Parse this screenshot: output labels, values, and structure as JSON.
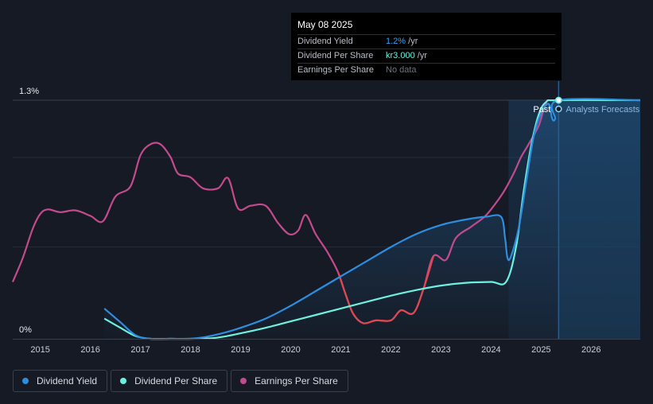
{
  "tooltip": {
    "date": "May 08 2025",
    "rows": [
      {
        "name": "Dividend Yield",
        "value": "1.2%",
        "suffix": " /yr",
        "color": "#3aa0ee"
      },
      {
        "name": "Dividend Per Share",
        "value": "kr3.000",
        "suffix": " /yr",
        "color": "#6ef0df"
      },
      {
        "name": "Earnings Per Share",
        "value": "No data",
        "suffix": "",
        "color": "#6d737c"
      }
    ]
  },
  "legend": [
    {
      "label": "Dividend Yield",
      "color": "#2d8ee0"
    },
    {
      "label": "Dividend Per Share",
      "color": "#6ef0df"
    },
    {
      "label": "Earnings Per Share",
      "color": "#c44a8e"
    }
  ],
  "chart_data": {
    "type": "line",
    "y_tick_labels": [
      "1.3%",
      "0%"
    ],
    "x_tick_labels": [
      "2015",
      "2016",
      "2017",
      "2018",
      "2019",
      "2020",
      "2021",
      "2022",
      "2023",
      "2024",
      "2025",
      "2026"
    ],
    "xlim": [
      2014.45,
      2026.98
    ],
    "ylim": [
      0,
      1.3
    ],
    "past_label": "Past",
    "forecast_label": "Analysts Forecasts",
    "forecast_start": 2024.35,
    "cursor_x": 2025.35,
    "series": [
      {
        "name": "Dividend Yield",
        "color": "#2d8ee0",
        "points": [
          [
            2016.28,
            0.165
          ],
          [
            2016.6,
            0.09
          ],
          [
            2016.9,
            0.02
          ],
          [
            2017.2,
            0.0
          ],
          [
            2017.6,
            0.0
          ],
          [
            2018.0,
            0.0
          ],
          [
            2018.3,
            0.01
          ],
          [
            2018.7,
            0.035
          ],
          [
            2019.0,
            0.06
          ],
          [
            2019.5,
            0.11
          ],
          [
            2020.0,
            0.18
          ],
          [
            2020.5,
            0.26
          ],
          [
            2021.0,
            0.34
          ],
          [
            2021.5,
            0.42
          ],
          [
            2022.0,
            0.5
          ],
          [
            2022.5,
            0.57
          ],
          [
            2023.0,
            0.62
          ],
          [
            2023.5,
            0.65
          ],
          [
            2023.9,
            0.665
          ],
          [
            2024.2,
            0.665
          ],
          [
            2024.28,
            0.55
          ],
          [
            2024.33,
            0.44
          ],
          [
            2024.4,
            0.45
          ],
          [
            2024.55,
            0.6
          ],
          [
            2024.7,
            0.85
          ],
          [
            2024.85,
            1.1
          ],
          [
            2025.0,
            1.23
          ],
          [
            2025.15,
            1.28
          ],
          [
            2025.22,
            1.2
          ],
          [
            2025.28,
            1.2
          ],
          [
            2025.35,
            1.3
          ],
          [
            2026.98,
            1.3
          ]
        ]
      },
      {
        "name": "Dividend Per Share",
        "color": "#6ef0df",
        "points": [
          [
            2016.28,
            0.11
          ],
          [
            2016.6,
            0.06
          ],
          [
            2016.9,
            0.015
          ],
          [
            2017.2,
            0.0
          ],
          [
            2017.6,
            0.0
          ],
          [
            2018.0,
            0.0
          ],
          [
            2018.5,
            0.005
          ],
          [
            2019.0,
            0.03
          ],
          [
            2019.5,
            0.06
          ],
          [
            2020.0,
            0.095
          ],
          [
            2020.5,
            0.13
          ],
          [
            2021.0,
            0.165
          ],
          [
            2021.5,
            0.2
          ],
          [
            2022.0,
            0.235
          ],
          [
            2022.5,
            0.265
          ],
          [
            2023.0,
            0.29
          ],
          [
            2023.5,
            0.305
          ],
          [
            2024.0,
            0.31
          ],
          [
            2024.3,
            0.31
          ],
          [
            2024.5,
            0.5
          ],
          [
            2024.65,
            0.8
          ],
          [
            2024.8,
            1.05
          ],
          [
            2024.95,
            1.22
          ],
          [
            2025.1,
            1.29
          ],
          [
            2025.35,
            1.3
          ],
          [
            2026.98,
            1.3
          ]
        ]
      },
      {
        "name": "Earnings Per Share",
        "color_past": "#c44a8e",
        "color_loss": "#e0474f",
        "points": [
          [
            2014.45,
            0.31
          ],
          [
            2014.65,
            0.44
          ],
          [
            2014.85,
            0.6
          ],
          [
            2015.0,
            0.68
          ],
          [
            2015.15,
            0.705
          ],
          [
            2015.4,
            0.69
          ],
          [
            2015.7,
            0.7
          ],
          [
            2016.0,
            0.67
          ],
          [
            2016.25,
            0.64
          ],
          [
            2016.5,
            0.775
          ],
          [
            2016.8,
            0.83
          ],
          [
            2017.0,
            1.0
          ],
          [
            2017.2,
            1.06
          ],
          [
            2017.4,
            1.06
          ],
          [
            2017.6,
            0.99
          ],
          [
            2017.75,
            0.9
          ],
          [
            2018.0,
            0.88
          ],
          [
            2018.25,
            0.82
          ],
          [
            2018.55,
            0.82
          ],
          [
            2018.75,
            0.875
          ],
          [
            2018.95,
            0.71
          ],
          [
            2019.2,
            0.725
          ],
          [
            2019.5,
            0.725
          ],
          [
            2019.75,
            0.63
          ],
          [
            2019.97,
            0.57
          ],
          [
            2020.15,
            0.59
          ],
          [
            2020.3,
            0.675
          ],
          [
            2020.5,
            0.57
          ],
          [
            2020.75,
            0.465
          ],
          [
            2020.95,
            0.36
          ],
          [
            2021.1,
            0.24
          ],
          [
            2021.25,
            0.135
          ],
          [
            2021.45,
            0.085
          ],
          [
            2021.7,
            0.1
          ],
          [
            2022.0,
            0.1
          ],
          [
            2022.2,
            0.155
          ],
          [
            2022.45,
            0.14
          ],
          [
            2022.65,
            0.27
          ],
          [
            2022.85,
            0.45
          ],
          [
            2023.1,
            0.43
          ],
          [
            2023.3,
            0.55
          ],
          [
            2023.6,
            0.61
          ],
          [
            2023.85,
            0.66
          ],
          [
            2024.0,
            0.705
          ],
          [
            2024.25,
            0.8
          ],
          [
            2024.45,
            0.9
          ],
          [
            2024.6,
            0.99
          ],
          [
            2024.75,
            1.06
          ],
          [
            2024.95,
            1.16
          ],
          [
            2025.05,
            1.25
          ],
          [
            2025.12,
            1.3
          ]
        ]
      }
    ]
  }
}
